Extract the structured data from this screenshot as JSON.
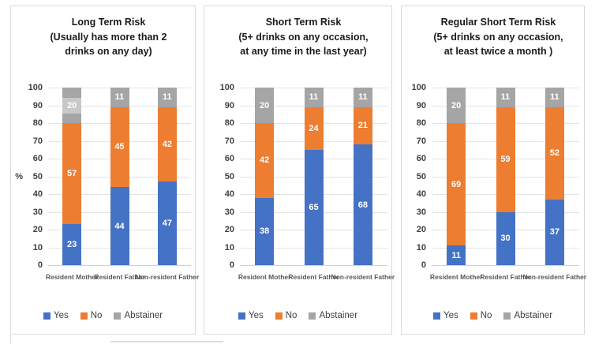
{
  "colors": {
    "yes": "#4472C4",
    "no": "#ED7D31",
    "abstainer": "#A5A5A5",
    "label_highlight": "#C8C8C8",
    "grid": "#E4E4E4",
    "panel_border": "#D9D9D9",
    "axis_text": "#3F3F3F",
    "category_text": "#595959",
    "data_label_text": "#FFFFFF"
  },
  "y_axis": {
    "ticks": [
      100,
      90,
      80,
      70,
      60,
      50,
      40,
      30,
      20,
      10,
      0
    ]
  },
  "legend": {
    "items": [
      "Yes",
      "No",
      "Abstainer"
    ]
  },
  "chart_data": [
    {
      "type": "bar",
      "stacked": true,
      "title": "Long Term Risk",
      "subtitle_lines": [
        "(Usually has more than 2",
        "drinks on any day)"
      ],
      "categories": [
        "Resident Mother",
        "Resident Father",
        "Non-resident Father"
      ],
      "series": [
        {
          "name": "Yes",
          "color": "#4472C4",
          "values": [
            23,
            44,
            47
          ]
        },
        {
          "name": "No",
          "color": "#ED7D31",
          "values": [
            57,
            45,
            42
          ]
        },
        {
          "name": "Abstainer",
          "color": "#A5A5A5",
          "values": [
            20,
            11,
            11
          ]
        }
      ],
      "ylabel": "%",
      "ylim": [
        0,
        100
      ],
      "grid": true,
      "legend_position": "bottom",
      "highlighted_label": {
        "category": "Resident Mother",
        "series": "Abstainer"
      }
    },
    {
      "type": "bar",
      "stacked": true,
      "title": "Short Term Risk",
      "subtitle_lines": [
        "(5+ drinks on any occasion,",
        "at any time in the last year)"
      ],
      "categories": [
        "Resident Mother",
        "Resident Father",
        "Non-resident Father"
      ],
      "series": [
        {
          "name": "Yes",
          "color": "#4472C4",
          "values": [
            38,
            65,
            68
          ]
        },
        {
          "name": "No",
          "color": "#ED7D31",
          "values": [
            42,
            24,
            21
          ]
        },
        {
          "name": "Abstainer",
          "color": "#A5A5A5",
          "values": [
            20,
            11,
            11
          ]
        }
      ],
      "ylabel": "",
      "ylim": [
        0,
        100
      ],
      "grid": true,
      "legend_position": "bottom"
    },
    {
      "type": "bar",
      "stacked": true,
      "title": "Regular Short Term Risk",
      "subtitle_lines": [
        "(5+ drinks on any occasion,",
        "at least twice a month )"
      ],
      "categories": [
        "Resident Mother",
        "Resident Father",
        "Non-resident Father"
      ],
      "series": [
        {
          "name": "Yes",
          "color": "#4472C4",
          "values": [
            11,
            30,
            37
          ]
        },
        {
          "name": "No",
          "color": "#ED7D31",
          "values": [
            69,
            59,
            52
          ]
        },
        {
          "name": "Abstainer",
          "color": "#A5A5A5",
          "values": [
            20,
            11,
            11
          ]
        }
      ],
      "ylabel": "",
      "ylim": [
        0,
        100
      ],
      "grid": true,
      "legend_position": "bottom"
    }
  ]
}
